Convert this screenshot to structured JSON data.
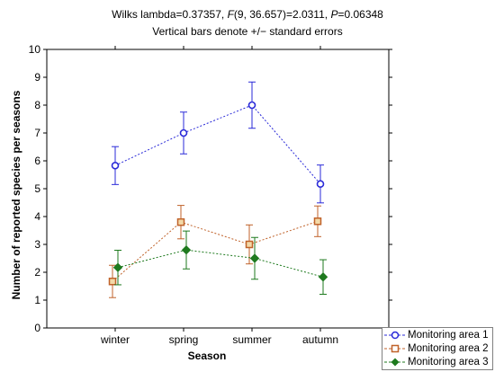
{
  "title_line1_parts": [
    "Wilks lambda=0.37357, ",
    "F",
    "(9, 36.657)=2.0311, ",
    "P",
    "=0.06348"
  ],
  "title_line2": "Vertical bars denote +/− standard errors",
  "chart_data": {
    "type": "line",
    "xlabel": "Season",
    "ylabel": "Number of reported species per seasons",
    "categories": [
      "winter",
      "spring",
      "summer",
      "autumn"
    ],
    "ylim": [
      0,
      10
    ],
    "yticks": [
      0,
      1,
      2,
      3,
      4,
      5,
      6,
      7,
      8,
      9,
      10
    ],
    "grid": false,
    "legend_position": "bottom-right",
    "error_bars": "standard error",
    "series": [
      {
        "name": "Monitoring area 1",
        "color": "#2a2ad8",
        "marker": "circle",
        "values": [
          5.83,
          7.0,
          8.0,
          5.17
        ],
        "se": [
          0.68,
          0.75,
          0.83,
          0.68
        ]
      },
      {
        "name": "Monitoring area 2",
        "color": "#c0622a",
        "marker": "square",
        "values": [
          1.67,
          3.8,
          3.0,
          3.83
        ],
        "se": [
          0.58,
          0.6,
          0.7,
          0.55
        ]
      },
      {
        "name": "Monitoring area 3",
        "color": "#1e7a1e",
        "marker": "diamond",
        "values": [
          2.17,
          2.8,
          2.5,
          1.83
        ],
        "se": [
          0.62,
          0.68,
          0.75,
          0.62
        ]
      }
    ]
  }
}
